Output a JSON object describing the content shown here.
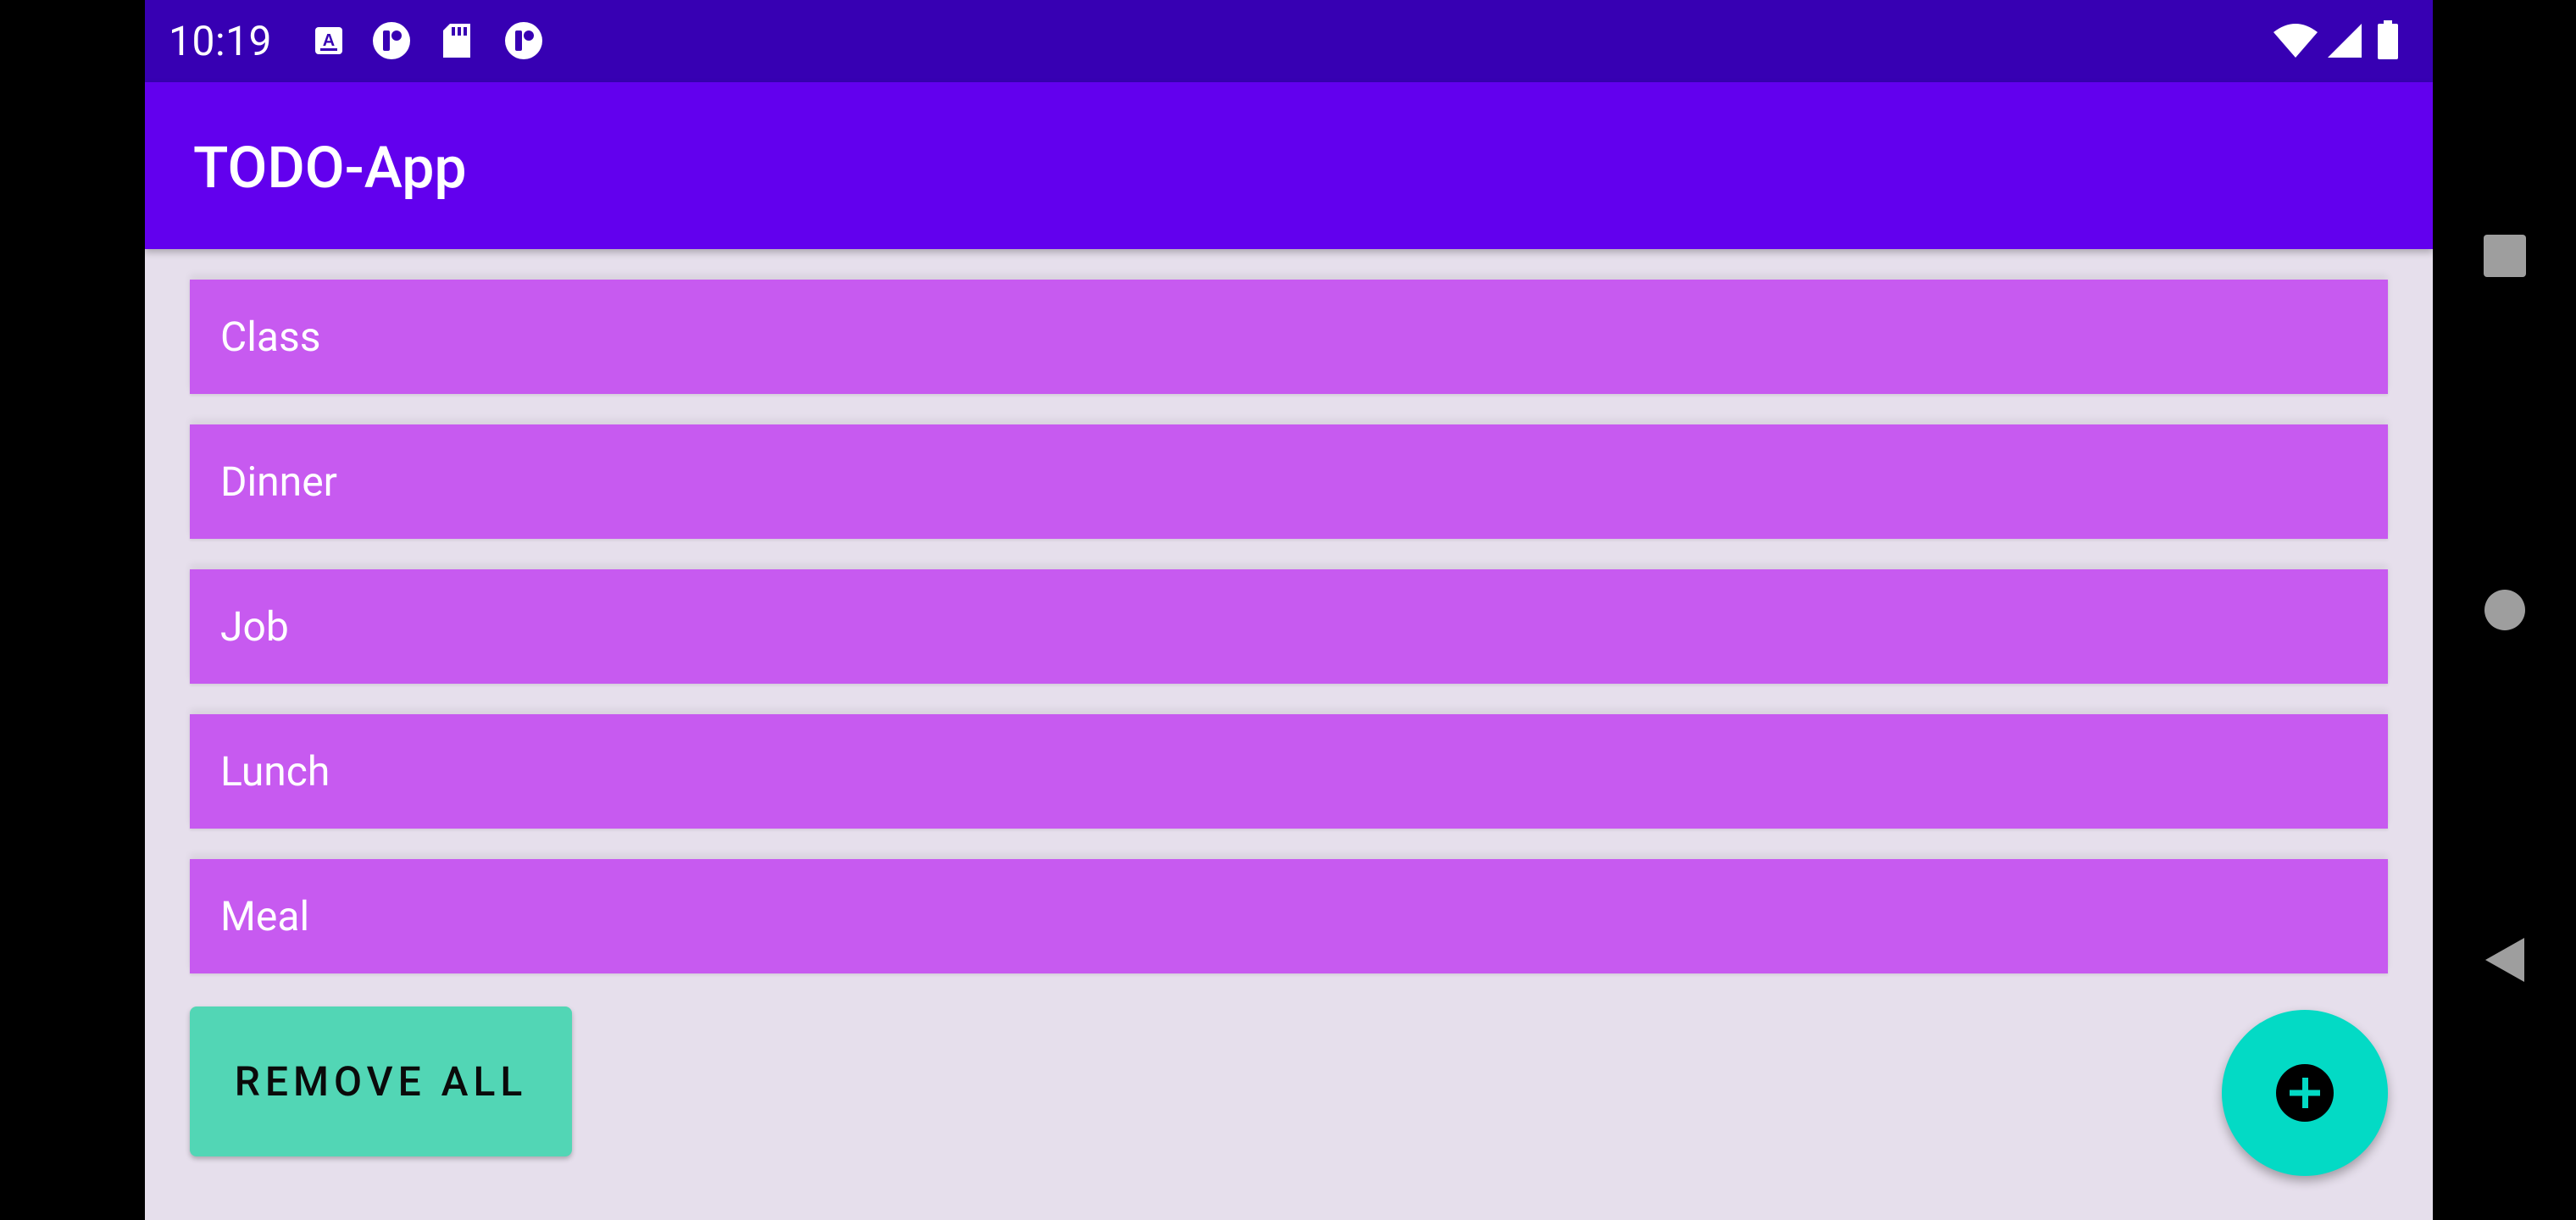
{
  "status_bar": {
    "time": "10:19",
    "icons": [
      "accessibility-a-icon",
      "notification-icon",
      "sd-card-icon",
      "notification-icon",
      "wifi-icon",
      "cellular-signal-icon",
      "battery-icon"
    ]
  },
  "app_bar": {
    "title": "TODO-App"
  },
  "todos": [
    {
      "label": "Class"
    },
    {
      "label": "Dinner"
    },
    {
      "label": "Job"
    },
    {
      "label": "Lunch"
    },
    {
      "label": "Meal"
    }
  ],
  "actions": {
    "remove_all_label": "REMOVE ALL",
    "fab_icon": "plus-circle-icon"
  },
  "nav_bar": {
    "buttons": [
      "recents-square-icon",
      "home-circle-icon",
      "back-triangle-icon"
    ]
  },
  "colors": {
    "status_bar": "#3700b3",
    "app_bar": "#6200ee",
    "item_background": "#c75af0",
    "background": "#e6dfec",
    "remove_button": "#52d6b5",
    "fab": "#03dac5"
  }
}
